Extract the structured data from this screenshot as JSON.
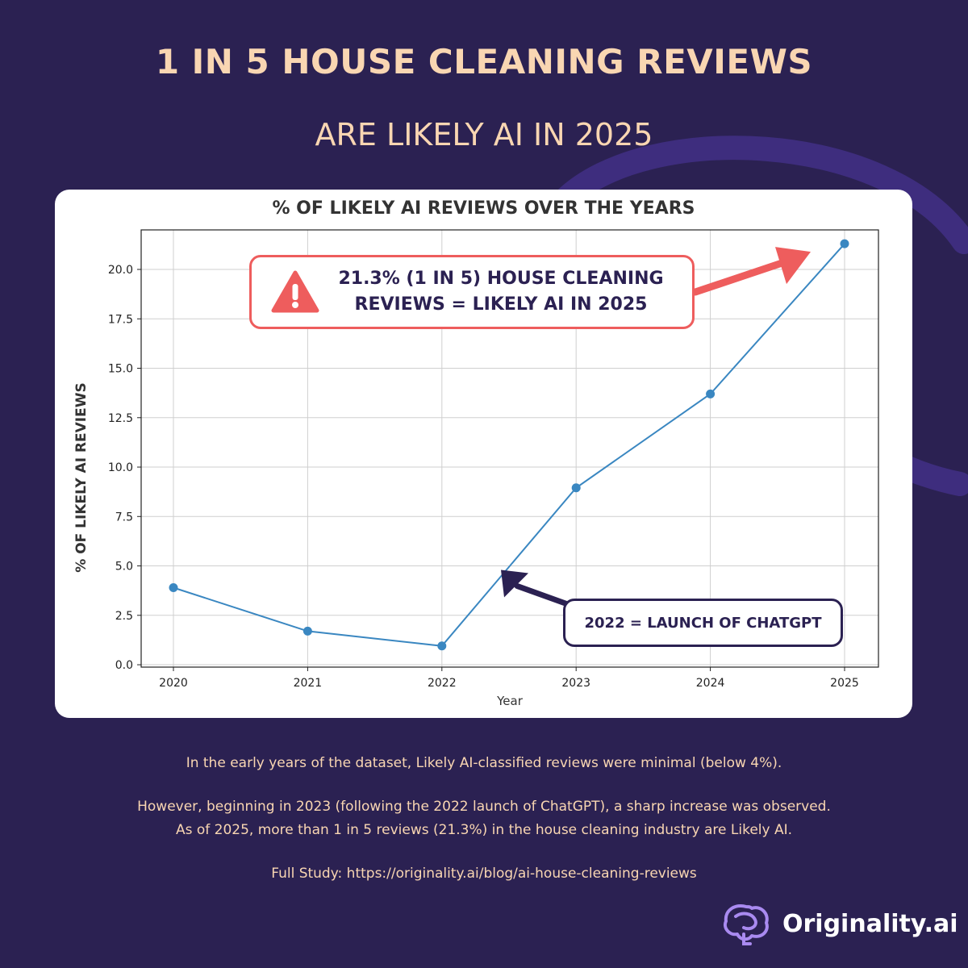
{
  "headline": "1 IN 5 HOUSE CLEANING REVIEWS",
  "subheadline": "ARE LIKELY AI IN 2025",
  "chart_data": {
    "type": "line",
    "title": "% OF LIKELY AI REVIEWS OVER THE YEARS",
    "xlabel": "Year",
    "ylabel": "% OF LIKELY AI REVIEWS",
    "categories": [
      "2020",
      "2021",
      "2022",
      "2023",
      "2024",
      "2025"
    ],
    "x": [
      2020,
      2021,
      2022,
      2023,
      2024,
      2025
    ],
    "values": [
      3.9,
      1.7,
      0.95,
      8.95,
      13.7,
      21.3
    ],
    "ylim": [
      0,
      22
    ],
    "yticks": [
      0.0,
      2.5,
      5.0,
      7.5,
      10.0,
      12.5,
      15.0,
      17.5,
      20.0
    ],
    "ytick_labels": [
      "0.0",
      "2.5",
      "5.0",
      "7.5",
      "10.0",
      "12.5",
      "15.0",
      "17.5",
      "20.0"
    ],
    "grid": true,
    "line_color": "#3a87c1",
    "annotations": {
      "peak": {
        "text_line1": "21.3% (1 IN 5) HOUSE CLEANING",
        "text_line2": "REVIEWS = LIKELY AI IN 2025",
        "target_year": 2025,
        "color": "#ee5d5d"
      },
      "chatgpt": {
        "text": "2022 = LAUNCH OF CHATGPT",
        "color": "#2b2152"
      }
    }
  },
  "footer": {
    "line1": "In the early years of the dataset, Likely AI-classified reviews were minimal (below 4%).",
    "line2": "However, beginning in 2023 (following the 2022 launch of ChatGPT), a sharp increase was observed.",
    "line3": "As of 2025, more than 1 in 5 reviews (21.3%) in the house cleaning industry are Likely AI.",
    "line4": "Full Study: https://originality.ai/blog/ai-house-cleaning-reviews"
  },
  "brand": {
    "name": "Originality.ai",
    "logo_icon": "brain-icon"
  },
  "colors": {
    "background": "#2b2152",
    "accent": "#f9d6b2",
    "warning": "#ee5d5d",
    "swirl": "#4a3590"
  }
}
